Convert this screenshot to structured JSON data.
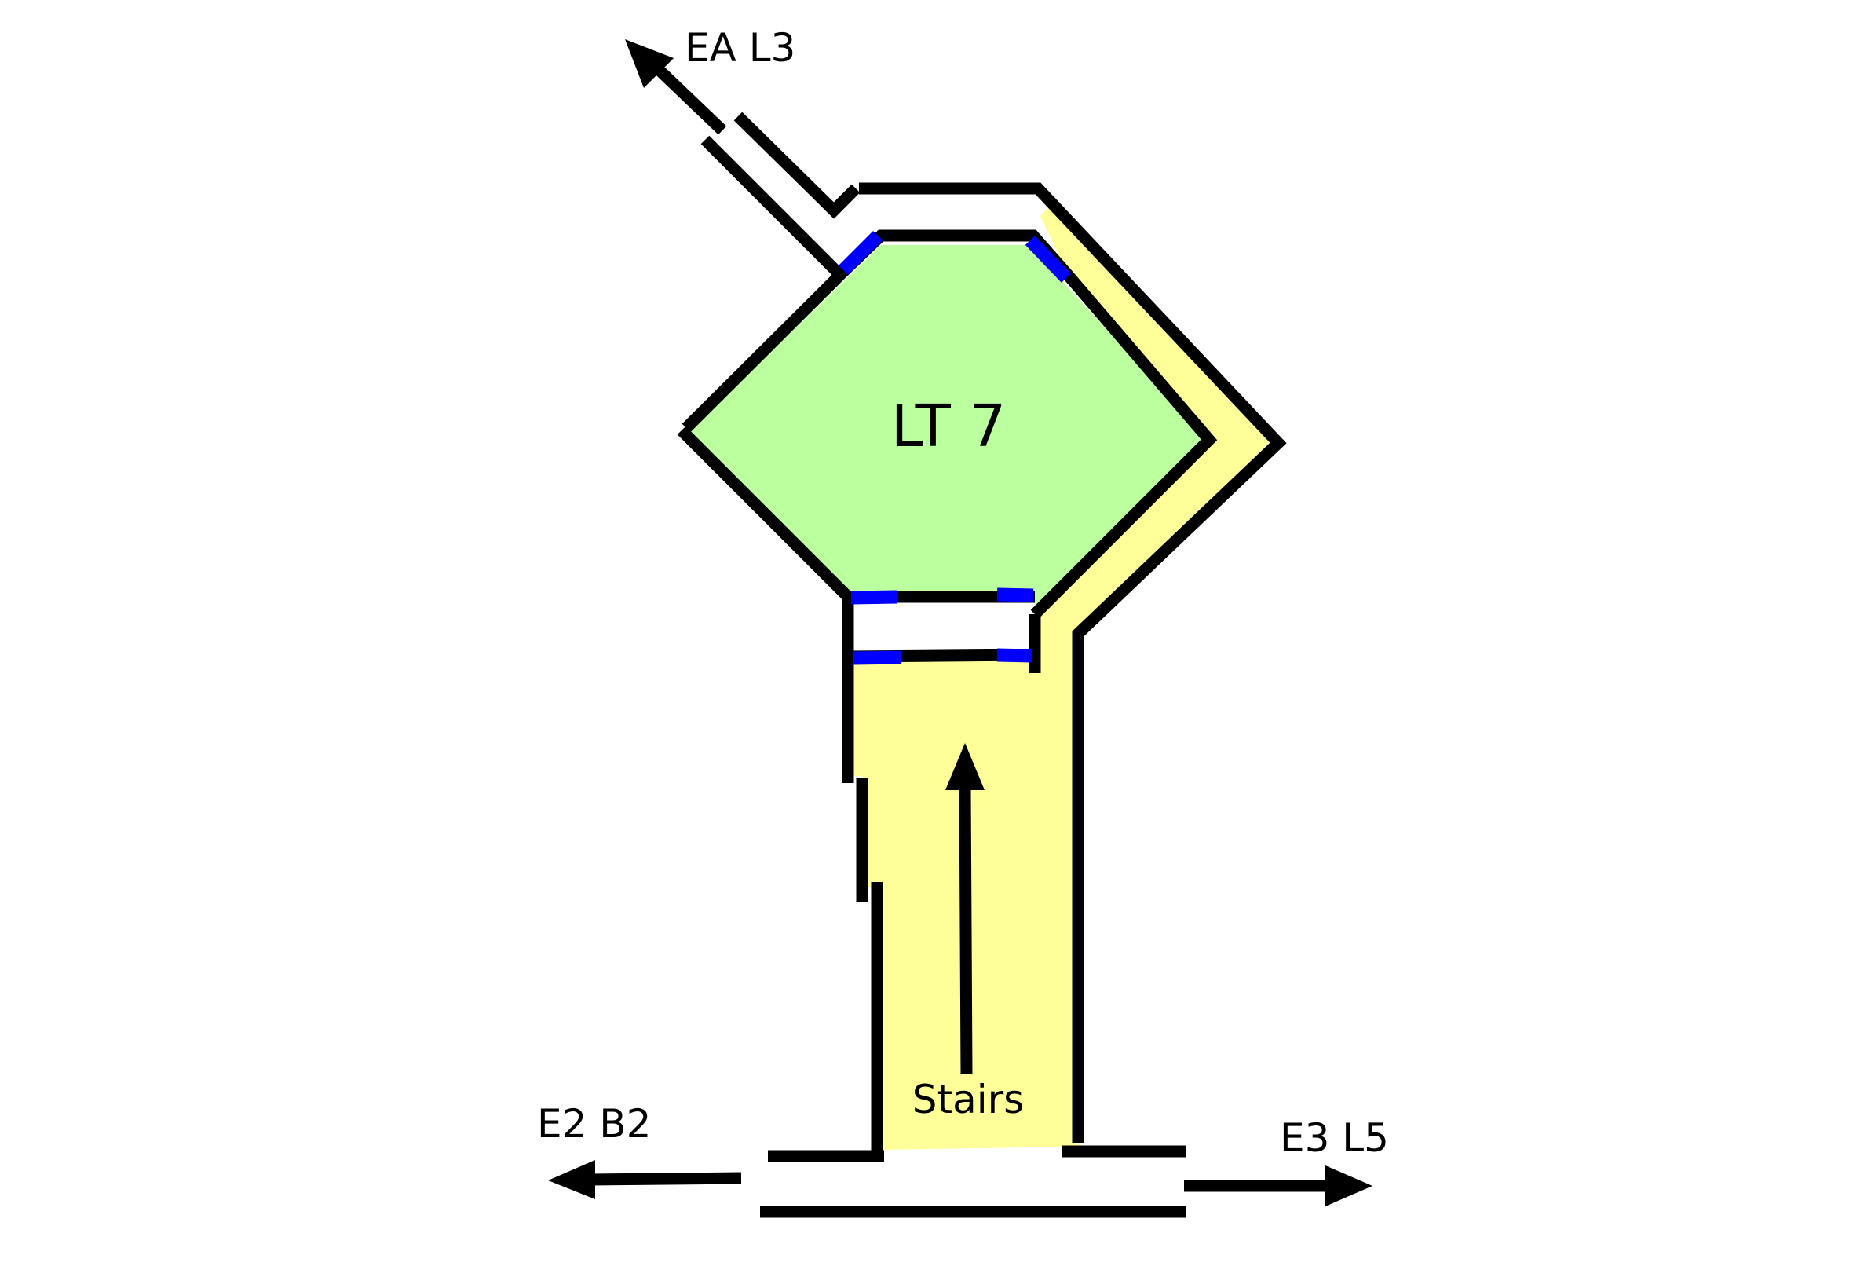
{
  "room": {
    "name": "LT 7",
    "fill_color": "#bbff9f"
  },
  "corridor": {
    "fill_color": "#ffff99"
  },
  "labels": {
    "stairs": "Stairs",
    "exit_top": "EA L3",
    "exit_left": "E2 B2",
    "exit_right": "E3 L5"
  },
  "colors": {
    "wall": "#000000",
    "door": "#0000ff"
  }
}
